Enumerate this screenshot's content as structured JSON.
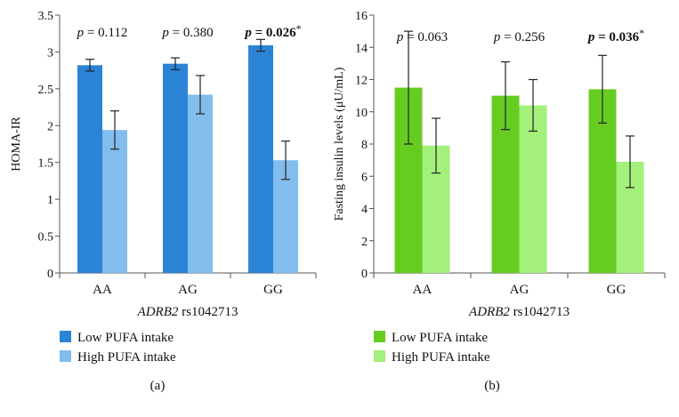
{
  "chart_data": [
    {
      "type": "bar",
      "panel_label": "(a)",
      "title": "",
      "ylabel": "HOMA-IR",
      "xlabel_gene": "ADRB2",
      "xlabel_snp": " rs1042713",
      "ylim": [
        0,
        3.5
      ],
      "yticks": [
        "0",
        "0.5",
        "1",
        "1.5",
        "2",
        "2.5",
        "3",
        "3.5"
      ],
      "ytick_values": [
        0,
        0.5,
        1,
        1.5,
        2,
        2.5,
        3,
        3.5
      ],
      "categories": [
        "AA",
        "AG",
        "GG"
      ],
      "series": [
        {
          "name": "Low PUFA intake",
          "color": "#2b83d6",
          "values": [
            2.82,
            2.84,
            3.09
          ],
          "errors": [
            0.08,
            0.08,
            0.08
          ]
        },
        {
          "name": "High PUFA intake",
          "color": "#82bdee",
          "values": [
            1.94,
            2.42,
            1.53
          ],
          "errors": [
            0.26,
            0.26,
            0.26
          ]
        }
      ],
      "annotations": [
        {
          "italic": "p",
          "text": " = 0.112",
          "bold": false,
          "star": ""
        },
        {
          "italic": "p",
          "text": " = 0.380",
          "bold": false,
          "star": ""
        },
        {
          "italic": "p",
          "text": " = 0.026",
          "bold": true,
          "star": "*"
        }
      ]
    },
    {
      "type": "bar",
      "panel_label": "(b)",
      "title": "",
      "ylabel": "Fasting insulin levels (μU/mL)",
      "xlabel_gene": "ADRB2",
      "xlabel_snp": " rs1042713",
      "ylim": [
        0,
        16
      ],
      "yticks": [
        "0",
        "2",
        "4",
        "6",
        "8",
        "10",
        "12",
        "14",
        "16"
      ],
      "ytick_values": [
        0,
        2,
        4,
        6,
        8,
        10,
        12,
        14,
        16
      ],
      "categories": [
        "AA",
        "AG",
        "GG"
      ],
      "series": [
        {
          "name": "Low PUFA intake",
          "color": "#66cc22",
          "values": [
            11.5,
            11.0,
            11.4
          ],
          "errors": [
            3.5,
            2.1,
            2.1
          ]
        },
        {
          "name": "High PUFA intake",
          "color": "#a3f07a",
          "values": [
            7.9,
            10.4,
            6.9
          ],
          "errors": [
            1.7,
            1.6,
            1.6
          ]
        }
      ],
      "annotations": [
        {
          "italic": "p",
          "text": " = 0.063",
          "bold": false,
          "star": ""
        },
        {
          "italic": "p",
          "text": " = 0.256",
          "bold": false,
          "star": ""
        },
        {
          "italic": "p",
          "text": " = 0.036",
          "bold": true,
          "star": "*"
        }
      ]
    }
  ]
}
